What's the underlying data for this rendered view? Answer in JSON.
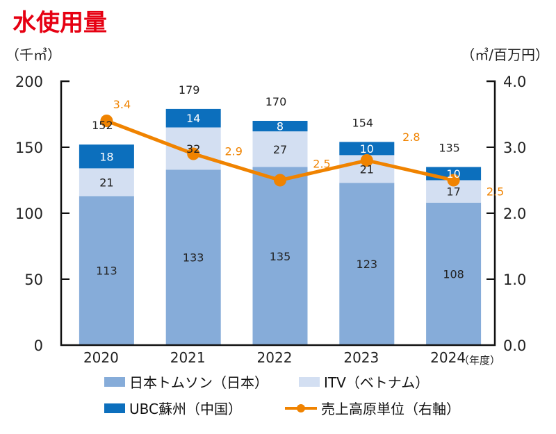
{
  "chart_data": {
    "type": "bar",
    "stacked": true,
    "title": "水使用量",
    "ylabel_left": "（千㎥）",
    "ylabel_right": "（㎥/百万円）",
    "xlabel": "（年度）",
    "categories": [
      "2020",
      "2021",
      "2022",
      "2023",
      "2024"
    ],
    "ylim_left": [
      0,
      200
    ],
    "yticks_left": [
      "0",
      "50",
      "100",
      "150",
      "200"
    ],
    "ylim_right": [
      0,
      4.0
    ],
    "yticks_right": [
      "0.0",
      "1.0",
      "2.0",
      "3.0",
      "4.0"
    ],
    "grid": false,
    "legend_position": "bottom",
    "series": [
      {
        "name": "日本トムソン（日本）",
        "type": "bar",
        "color": "#86acd9",
        "values": [
          113,
          133,
          135,
          123,
          108
        ]
      },
      {
        "name": "ITV（ベトナム）",
        "type": "bar",
        "color": "#d3dff2",
        "values": [
          21,
          32,
          27,
          21,
          17
        ]
      },
      {
        "name": "UBC蘇州（中国）",
        "type": "bar",
        "color": "#0c6fbd",
        "values": [
          18,
          14,
          8,
          10,
          10
        ]
      },
      {
        "name": "売上高原単位（右軸）",
        "type": "line",
        "axis": "right",
        "color": "#f08300",
        "values": [
          3.4,
          2.9,
          2.5,
          2.8,
          2.5
        ]
      }
    ],
    "totals": [
      152,
      179,
      170,
      154,
      135
    ],
    "title_color": "#e60012"
  }
}
